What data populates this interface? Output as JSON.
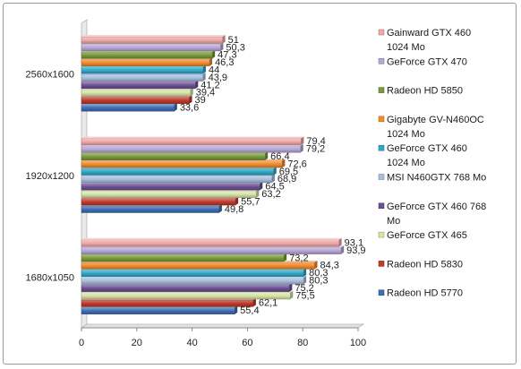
{
  "chart_data": {
    "type": "bar",
    "orientation": "horizontal",
    "categories": [
      "1680x1050",
      "1920x1200",
      "2560x1600"
    ],
    "series": [
      {
        "name": "Radeon HD 5770",
        "color": "#3f6db3",
        "values": [
          55.4,
          49.8,
          33.6
        ]
      },
      {
        "name": "Radeon HD 5830",
        "color": "#c0392b",
        "values": [
          62.1,
          55.7,
          39
        ]
      },
      {
        "name": "GeForce GTX 465",
        "color": "#d6e4a6",
        "values": [
          75.5,
          63.2,
          39.4
        ]
      },
      {
        "name": "GeForce GTX 460 768 Mo",
        "color": "#6d4f93",
        "values": [
          75.2,
          64.5,
          41.2
        ]
      },
      {
        "name": "MSI N460GTX 768 Mo",
        "color": "#a9bede",
        "values": [
          80.3,
          68.9,
          43.9
        ]
      },
      {
        "name": "GeForce GTX 460 1024 Mo",
        "color": "#2fa8c7",
        "values": [
          80.3,
          69.5,
          44
        ]
      },
      {
        "name": "Gigabyte GV-N460OC 1024 Mo",
        "color": "#f08b2e",
        "values": [
          84.3,
          72.6,
          46.3
        ]
      },
      {
        "name": "Radeon HD 5850",
        "color": "#7a9a3a",
        "values": [
          73.2,
          66.4,
          47.3
        ]
      },
      {
        "name": "GeForce GTX 470",
        "color": "#b7a7d6",
        "values": [
          93.9,
          79.2,
          50.3
        ]
      },
      {
        "name": "Gainward GTX 460 1024 Mo",
        "color": "#f0a8a8",
        "values": [
          93.1,
          79.4,
          51
        ]
      }
    ],
    "value_labels": [
      [
        "55,4",
        "49,8",
        "33,6"
      ],
      [
        "62,1",
        "55,7",
        "39"
      ],
      [
        "75,5",
        "63,2",
        "39,4"
      ],
      [
        "75,2",
        "64,5",
        "41,2"
      ],
      [
        "80,3",
        "68,9",
        "43,9"
      ],
      [
        "80,3",
        "69,5",
        "44"
      ],
      [
        "84,3",
        "72,6",
        "46,3"
      ],
      [
        "73,2",
        "66,4",
        "47,3"
      ],
      [
        "93,9",
        "79,2",
        "50,3"
      ],
      [
        "93,1",
        "79,4",
        "51"
      ]
    ],
    "legend_labels": [
      "Gainward GTX 460 1024 Mo",
      "GeForce GTX 470",
      "Radeon HD 5850",
      "Gigabyte GV-N460OC 1024 Mo",
      "GeForce GTX 460 1024 Mo",
      "MSI N460GTX 768 Mo",
      "GeForce GTX 460 768 Mo",
      "GeForce GTX 465",
      "Radeon HD 5830",
      "Radeon HD 5770"
    ],
    "xlim": [
      0,
      100
    ],
    "xticks": [
      "0",
      "20",
      "40",
      "60",
      "80",
      "100"
    ],
    "title": "",
    "xlabel": "",
    "ylabel": "",
    "legend": "right",
    "grid": false
  }
}
